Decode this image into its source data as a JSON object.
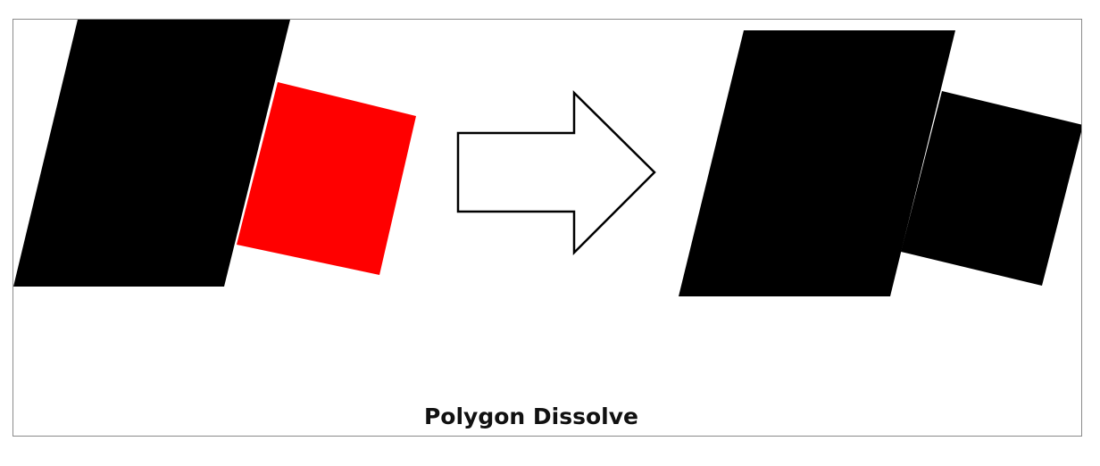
{
  "caption": "Polygon Dissolve",
  "colors": {
    "background": "#ffffff",
    "frame_border": "#8a8a8a",
    "polygon_primary": "#000000",
    "polygon_secondary": "#ff0000",
    "arrow_fill": "#ffffff",
    "arrow_stroke": "#000000",
    "caption_text": "#111111"
  },
  "diagram": {
    "input_polygons": [
      "parallelogram",
      "rotated-square"
    ],
    "output_polygons": [
      "dissolved-shape"
    ],
    "connector": "right-arrow"
  }
}
